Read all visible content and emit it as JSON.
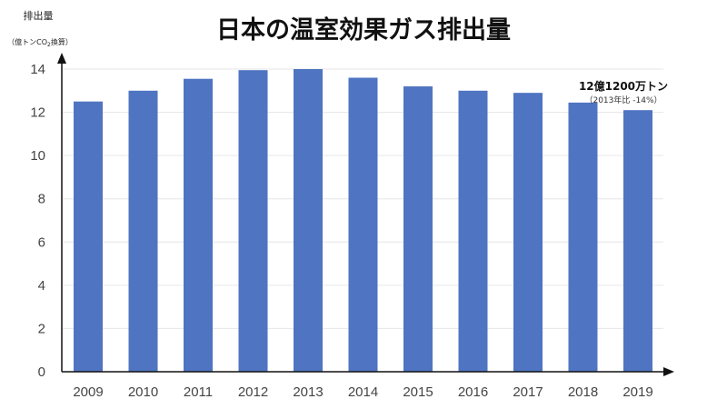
{
  "chart_data": {
    "type": "bar",
    "title": "日本の温室効果ガス排出量",
    "ylabel": "排出量",
    "ylabel_unit_prefix": "（億トンCO",
    "ylabel_unit_sub": "2",
    "ylabel_unit_suffix": "換算）",
    "xlabel": "",
    "categories": [
      "2009",
      "2010",
      "2011",
      "2012",
      "2013",
      "2014",
      "2015",
      "2016",
      "2017",
      "2018",
      "2019"
    ],
    "values": [
      12.5,
      13.0,
      13.55,
      13.95,
      14.0,
      13.6,
      13.2,
      13.0,
      12.9,
      12.45,
      12.1
    ],
    "ylim": [
      0,
      14
    ],
    "yticks": [
      0,
      2,
      4,
      6,
      8,
      10,
      12,
      14
    ],
    "bar_color": "#4f74c1",
    "grid": true,
    "annotation": {
      "category": "2019",
      "main": "12億1200万トン",
      "sub": "（2013年比 -14%）"
    }
  }
}
